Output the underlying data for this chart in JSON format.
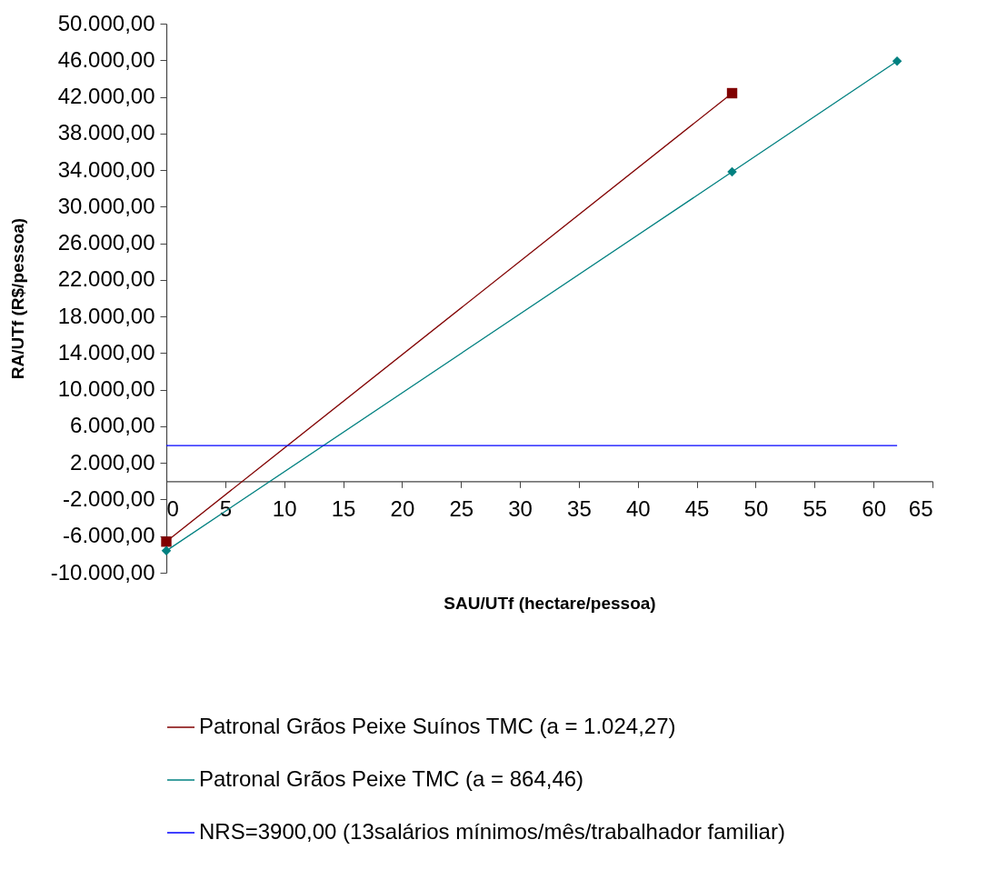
{
  "chart_data": {
    "type": "line",
    "xlabel": "SAU/UTf (hectare/pessoa)",
    "ylabel": "RA/UTf  (R$/pessoa)",
    "xlim": [
      0,
      65
    ],
    "xticks": [
      0,
      5,
      10,
      15,
      20,
      25,
      30,
      35,
      40,
      45,
      50,
      55,
      60,
      65
    ],
    "ylim": [
      -10000,
      50000
    ],
    "yticks": [
      {
        "value": -10000,
        "label": "-10.000,00"
      },
      {
        "value": -6000,
        "label": "-6.000,00"
      },
      {
        "value": -2000,
        "label": "-2.000,00"
      },
      {
        "value": 2000,
        "label": "2.000,00"
      },
      {
        "value": 6000,
        "label": "6.000,00"
      },
      {
        "value": 10000,
        "label": "10.000,00"
      },
      {
        "value": 14000,
        "label": "14.000,00"
      },
      {
        "value": 18000,
        "label": "18.000,00"
      },
      {
        "value": 22000,
        "label": "22.000,00"
      },
      {
        "value": 26000,
        "label": "26.000,00"
      },
      {
        "value": 30000,
        "label": "30.000,00"
      },
      {
        "value": 34000,
        "label": "34.000,00"
      },
      {
        "value": 38000,
        "label": "38.000,00"
      },
      {
        "value": 42000,
        "label": "42.000,00"
      },
      {
        "value": 46000,
        "label": "46.000,00"
      },
      {
        "value": 50000,
        "label": "50.000,00"
      }
    ],
    "grid": false,
    "legend": "bottom",
    "series": [
      {
        "name": "Patronal Grãos Peixe Suínos TMC (a = 1.024,27)",
        "color": "#800000",
        "marker": "square",
        "x": [
          0,
          48
        ],
        "values": [
          -6600,
          42400
        ]
      },
      {
        "name": "Patronal Grãos Peixe TMC (a = 864,46)",
        "color": "#008080",
        "marker": "diamond",
        "x": [
          0,
          48,
          62
        ],
        "values": [
          -7600,
          33800,
          45900
        ]
      },
      {
        "name": "NRS=3900,00 (13salários mínimos/mês/trabalhador familiar)",
        "color": "#0000ff",
        "marker": "none",
        "x": [
          0,
          62
        ],
        "values": [
          3900,
          3900
        ]
      }
    ]
  }
}
